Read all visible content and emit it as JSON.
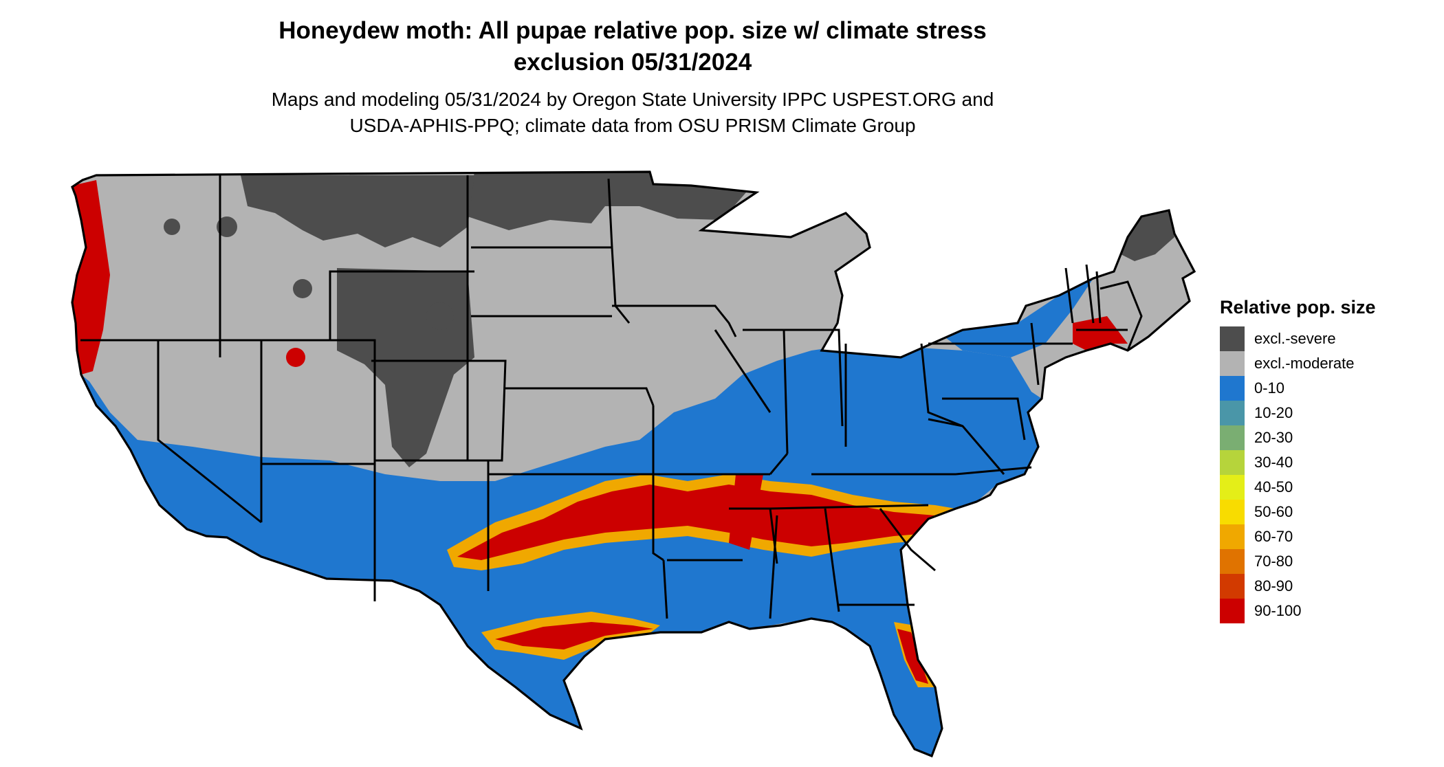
{
  "title_line1": "Honeydew moth: All pupae relative pop. size w/ climate stress",
  "title_line2": "exclusion 05/31/2024",
  "subtitle_line1": "Maps and modeling 05/31/2024 by Oregon State University IPPC USPEST.ORG and",
  "subtitle_line2": "USDA-APHIS-PPQ; climate data from OSU PRISM Climate Group",
  "legend": {
    "title": "Relative pop. size",
    "items": [
      {
        "label": "excl.-severe",
        "color": "#4d4d4d"
      },
      {
        "label": "excl.-moderate",
        "color": "#b3b3b3"
      },
      {
        "label": "0-10",
        "color": "#1f77cf"
      },
      {
        "label": "10-20",
        "color": "#4a96a8"
      },
      {
        "label": "20-30",
        "color": "#7aae72"
      },
      {
        "label": "30-40",
        "color": "#b6d43b"
      },
      {
        "label": "40-50",
        "color": "#e4ee18"
      },
      {
        "label": "50-60",
        "color": "#f8dc00"
      },
      {
        "label": "60-70",
        "color": "#f0a800"
      },
      {
        "label": "70-80",
        "color": "#e07300"
      },
      {
        "label": "80-90",
        "color": "#d23a00"
      },
      {
        "label": "90-100",
        "color": "#cc0000"
      }
    ]
  }
}
